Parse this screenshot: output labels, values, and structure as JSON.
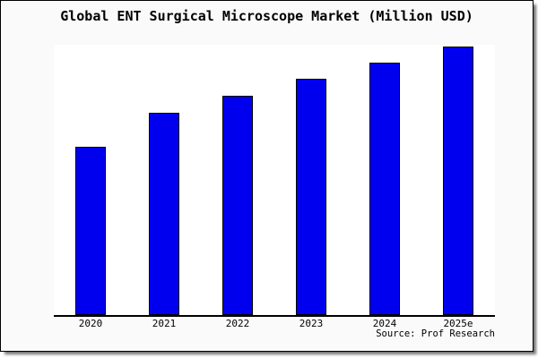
{
  "chart_data": {
    "type": "bar",
    "title": "Global ENT Surgical Microscope Market (Million USD)",
    "categories": [
      "2020",
      "2021",
      "2022",
      "2023",
      "2024",
      "2025e"
    ],
    "values": [
      62.7,
      75.3,
      81.7,
      88,
      94,
      100
    ],
    "values_note": "No numeric y-axis or data labels are rendered; values are bar heights estimated as percent of the tallest (2025e) bar",
    "xlabel": "",
    "ylabel": "",
    "ylim": [
      0,
      100
    ],
    "grid": false,
    "legend_position": "none",
    "bar_color": "#0000EE",
    "bar_edge_color": "#000000",
    "source_label": "Source: Prof Research"
  },
  "style": {
    "figure_background": "#fafafa",
    "plot_background": "#ffffff",
    "frame_border_color": "#000000",
    "axis_color": "#000000",
    "text_color": "#000000"
  }
}
